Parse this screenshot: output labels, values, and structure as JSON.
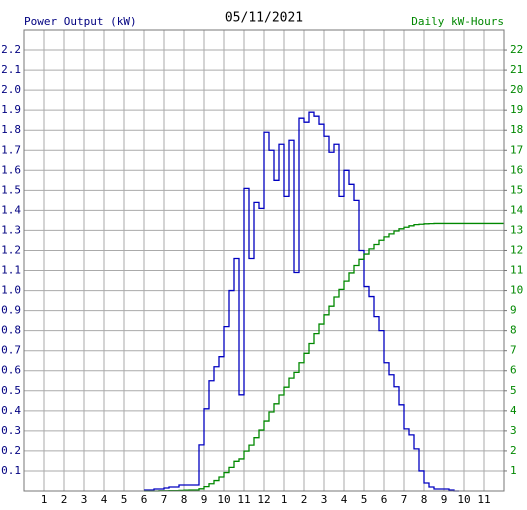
{
  "chart_data": {
    "type": "step",
    "title": "05/11/2021",
    "y_label": "Power Output (kW)",
    "y2_label": "Daily kW-Hours",
    "grid": true,
    "xlim": [
      0,
      24
    ],
    "xticks": [
      1,
      2,
      3,
      4,
      5,
      6,
      7,
      8,
      9,
      10,
      11,
      12,
      {
        "value": 13,
        "label": "1"
      },
      {
        "value": 14,
        "label": "2"
      },
      {
        "value": 15,
        "label": "3"
      },
      {
        "value": 16,
        "label": "4"
      },
      {
        "value": 17,
        "label": "5"
      },
      {
        "value": 18,
        "label": "6"
      },
      {
        "value": 19,
        "label": "7"
      },
      {
        "value": 20,
        "label": "8"
      },
      {
        "value": 21,
        "label": "9"
      },
      {
        "value": 22,
        "label": "10"
      },
      {
        "value": 23,
        "label": "11"
      }
    ],
    "ylim": [
      0,
      2.3
    ],
    "yticks": [
      0.1,
      0.2,
      0.3,
      0.4,
      0.5,
      0.6,
      0.7,
      0.8,
      0.9,
      {
        "value": 1,
        "label": "1.0"
      },
      1.1,
      1.2,
      1.3,
      1.4,
      1.5,
      1.6,
      1.7,
      1.8,
      1.9,
      {
        "value": 2,
        "label": "2.0"
      },
      2.1,
      2.2
    ],
    "y2lim": [
      0,
      23
    ],
    "y2ticks": [
      1,
      2,
      3,
      4,
      5,
      6,
      7,
      8,
      9,
      10,
      11,
      12,
      13,
      14,
      15,
      16,
      17,
      18,
      19,
      20,
      21,
      22
    ],
    "x": [
      6,
      6.25,
      6.5,
      6.75,
      7,
      7.25,
      7.5,
      7.75,
      8,
      8.25,
      8.5,
      8.75,
      9,
      9.25,
      9.5,
      9.75,
      10,
      10.25,
      10.5,
      10.75,
      11,
      11.25,
      11.5,
      11.75,
      12,
      12.25,
      12.5,
      12.75,
      13,
      13.25,
      13.5,
      13.75,
      14,
      14.25,
      14.5,
      14.75,
      15,
      15.25,
      15.5,
      15.75,
      16,
      16.25,
      16.5,
      16.75,
      17,
      17.25,
      17.5,
      17.75,
      18,
      18.25,
      18.5,
      18.75,
      19,
      19.25,
      19.5,
      19.75,
      20,
      20.25,
      20.5,
      20.75,
      21,
      21.25,
      21.5,
      21.75,
      24
    ],
    "series": [
      {
        "name": "Power Output (kW)",
        "color": "#0000c0",
        "values": [
          0.005,
          0.005,
          0.01,
          0.01,
          0.015,
          0.02,
          0.02,
          0.03,
          0.03,
          0.03,
          0.03,
          0.23,
          0.41,
          0.55,
          0.62,
          0.67,
          0.82,
          1.0,
          1.16,
          0.48,
          1.51,
          1.16,
          1.44,
          1.41,
          1.79,
          1.7,
          1.55,
          1.73,
          1.47,
          1.75,
          1.09,
          1.86,
          1.84,
          1.89,
          1.87,
          1.83,
          1.77,
          1.69,
          1.73,
          1.47,
          1.6,
          1.53,
          1.45,
          1.2,
          1.02,
          0.97,
          0.87,
          0.8,
          0.64,
          0.58,
          0.52,
          0.43,
          0.31,
          0.28,
          0.21,
          0.1,
          0.04,
          0.02,
          0.01,
          0.01,
          0.01,
          0.005,
          0,
          null,
          null
        ]
      },
      {
        "name": "Daily kW-Hours",
        "color": "#008800",
        "axis": "y2",
        "values": [
          0,
          0,
          0,
          0.01,
          0.01,
          0.02,
          0.02,
          0.03,
          0.04,
          0.05,
          0.05,
          0.11,
          0.22,
          0.36,
          0.52,
          0.7,
          0.92,
          1.18,
          1.48,
          1.6,
          1.99,
          2.29,
          2.66,
          3.04,
          3.49,
          3.94,
          4.35,
          4.79,
          5.18,
          5.63,
          5.92,
          6.4,
          6.87,
          7.36,
          7.85,
          8.33,
          8.79,
          9.22,
          9.68,
          10.06,
          10.47,
          10.88,
          11.25,
          11.56,
          11.82,
          12.08,
          12.3,
          12.51,
          12.68,
          12.83,
          12.97,
          13.08,
          13.16,
          13.23,
          13.29,
          13.31,
          13.33,
          13.34,
          13.35,
          13.35,
          13.35,
          13.35,
          13.35,
          13.35,
          13.35
        ]
      }
    ]
  }
}
